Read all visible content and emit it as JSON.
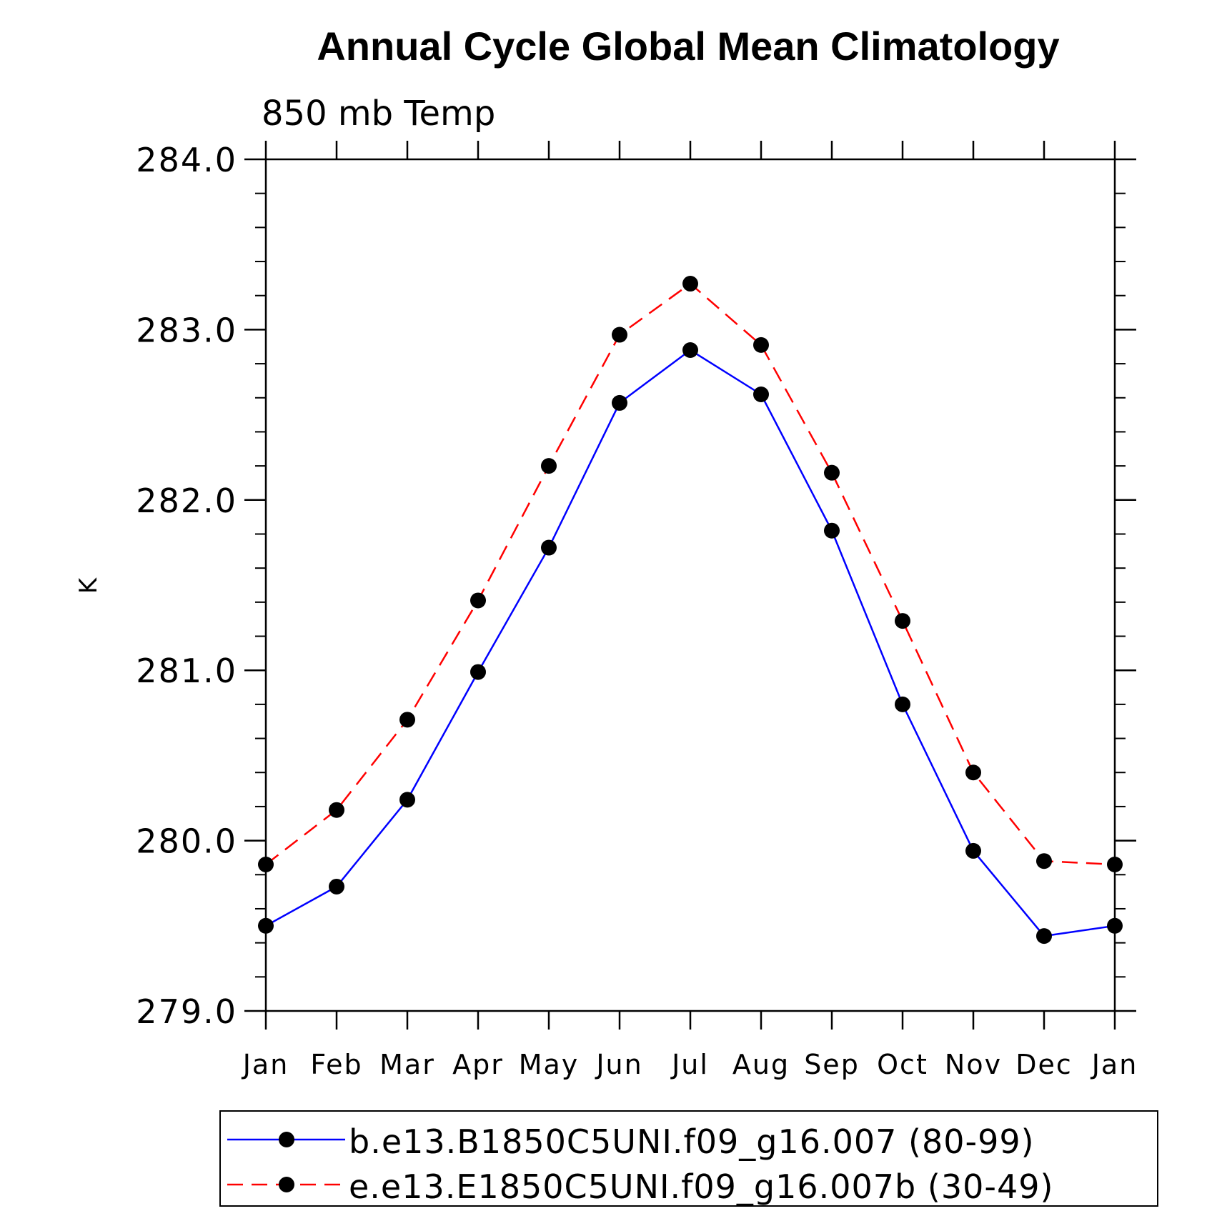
{
  "chart_data": {
    "type": "line",
    "title": "Annual Cycle Global Mean Climatology",
    "subtitle": "850 mb Temp",
    "xlabel": "",
    "ylabel": "K",
    "categories": [
      "Jan",
      "Feb",
      "Mar",
      "Apr",
      "May",
      "Jun",
      "Jul",
      "Aug",
      "Sep",
      "Oct",
      "Nov",
      "Dec",
      "Jan"
    ],
    "ylim": [
      279.0,
      284.0
    ],
    "yticks": [
      "279.0",
      "280.0",
      "281.0",
      "282.0",
      "283.0",
      "284.0"
    ],
    "grid": false,
    "legend_position": "bottom",
    "series": [
      {
        "name": "b.e13.B1850C5UNI.f09_g16.007 (80-99)",
        "color": "#0000ff",
        "dash": "solid",
        "values": [
          279.5,
          279.73,
          280.24,
          280.99,
          281.72,
          282.57,
          282.88,
          282.62,
          281.82,
          280.8,
          279.94,
          279.44,
          279.5
        ]
      },
      {
        "name": "e.e13.E1850C5UNI.f09_g16.007b (30-49)",
        "color": "#ff0000",
        "dash": "dashed",
        "values": [
          279.86,
          280.18,
          280.71,
          281.41,
          282.2,
          282.97,
          283.27,
          282.91,
          282.16,
          281.29,
          280.4,
          279.88,
          279.86
        ]
      }
    ]
  }
}
